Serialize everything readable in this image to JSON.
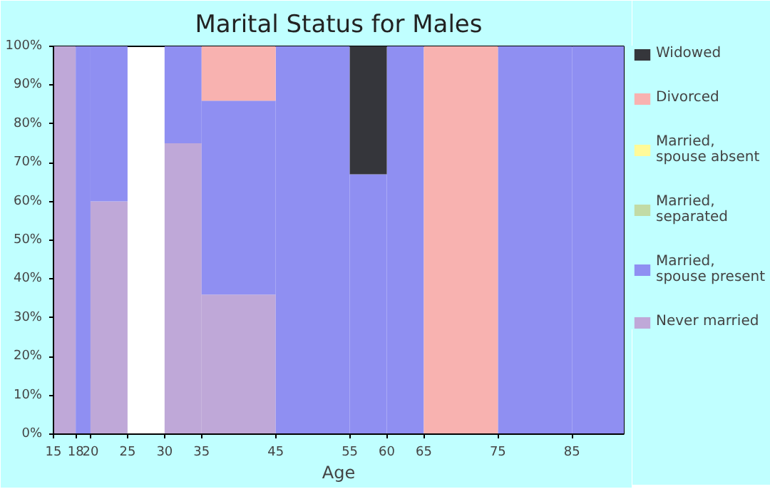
{
  "chart_data": {
    "type": "bar",
    "stacked": true,
    "title": "Marital Status for Males",
    "xlabel": "Age",
    "x": [
      16.5,
      19,
      22.5,
      27.5,
      32.5,
      40,
      50,
      57.5,
      62.5,
      70,
      80,
      88.5
    ],
    "xlim": [
      15,
      92
    ],
    "xticks": [
      15,
      18,
      20,
      25,
      30,
      35,
      45,
      55,
      60,
      65,
      75,
      85
    ],
    "ylim": [
      0,
      100
    ],
    "yticks": [
      {
        "value": 0,
        "label": "0%"
      },
      {
        "value": 10,
        "label": "10%"
      },
      {
        "value": 20,
        "label": "20%"
      },
      {
        "value": 30,
        "label": "30%"
      },
      {
        "value": 40,
        "label": "40%"
      },
      {
        "value": 50,
        "label": "50%"
      },
      {
        "value": 60,
        "label": "60%"
      },
      {
        "value": 70,
        "label": "70%"
      },
      {
        "value": 80,
        "label": "80%"
      },
      {
        "value": 90,
        "label": "90%"
      },
      {
        "value": 100,
        "label": "100%"
      }
    ],
    "grid": false,
    "legend": "right",
    "series": [
      {
        "name": "Never married",
        "color": "#bfa8d8",
        "values": [
          100,
          0,
          60,
          null,
          75,
          36,
          0,
          0,
          0,
          0,
          0,
          0
        ]
      },
      {
        "name": "Married, spouse present",
        "color": "#8f8ff2",
        "values": [
          0,
          100,
          40,
          null,
          25,
          50,
          100,
          67,
          100,
          0,
          100,
          100
        ]
      },
      {
        "name": "Married, separated",
        "color": "#c2dba6",
        "values": [
          0,
          0,
          0,
          null,
          0,
          0,
          0,
          0,
          0,
          0,
          0,
          0
        ]
      },
      {
        "name": "Married, spouse absent",
        "color": "#fffa99",
        "values": [
          0,
          0,
          0,
          null,
          0,
          0,
          0,
          0,
          0,
          0,
          0,
          0
        ]
      },
      {
        "name": "Divorced",
        "color": "#f8b2b0",
        "values": [
          0,
          0,
          0,
          null,
          0,
          14,
          0,
          0,
          0,
          100,
          0,
          0
        ]
      },
      {
        "name": "Widowed",
        "color": "#35363b",
        "values": [
          0,
          0,
          0,
          null,
          0,
          0,
          0,
          33,
          0,
          0,
          0,
          0
        ]
      }
    ]
  }
}
